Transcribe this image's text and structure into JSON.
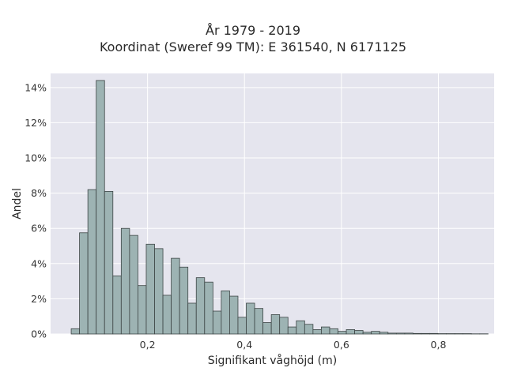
{
  "chart_data": {
    "type": "bar",
    "title": "År 1979 - 2019",
    "subtitle": "Koordinat (Sweref 99 TM): E 361540, N 6171125",
    "xlabel": "Signifikant våghöjd (m)",
    "ylabel": "Andel",
    "xlim": [
      0.0,
      0.915
    ],
    "ylim": [
      0,
      14.8
    ],
    "x_ticks": [
      0.2,
      0.4,
      0.6,
      0.8
    ],
    "x_tick_labels": [
      "0,2",
      "0,4",
      "0,6",
      "0,8"
    ],
    "y_ticks": [
      0,
      2,
      4,
      6,
      8,
      10,
      12,
      14
    ],
    "y_tick_labels": [
      "0%",
      "2%",
      "4%",
      "6%",
      "8%",
      "10%",
      "12%",
      "14%"
    ],
    "bin_start": 0.0425,
    "bin_width": 0.0172,
    "values": [
      0.3,
      5.75,
      8.2,
      14.4,
      8.1,
      3.3,
      6.0,
      5.6,
      2.75,
      5.1,
      4.85,
      2.2,
      4.3,
      3.8,
      1.75,
      3.2,
      2.95,
      1.3,
      2.45,
      2.15,
      0.95,
      1.75,
      1.45,
      0.65,
      1.1,
      0.95,
      0.4,
      0.75,
      0.55,
      0.25,
      0.4,
      0.3,
      0.15,
      0.25,
      0.2,
      0.1,
      0.15,
      0.1,
      0.05,
      0.05,
      0.05,
      0.03,
      0.03,
      0.03,
      0.02,
      0.02,
      0.02,
      0.02,
      0.01,
      0.01
    ],
    "grid": true,
    "colors": {
      "background": "#e5e5ee",
      "bar_fill": "#9db3b3",
      "bar_stroke": "#3d4545",
      "grid": "#ffffff"
    }
  }
}
